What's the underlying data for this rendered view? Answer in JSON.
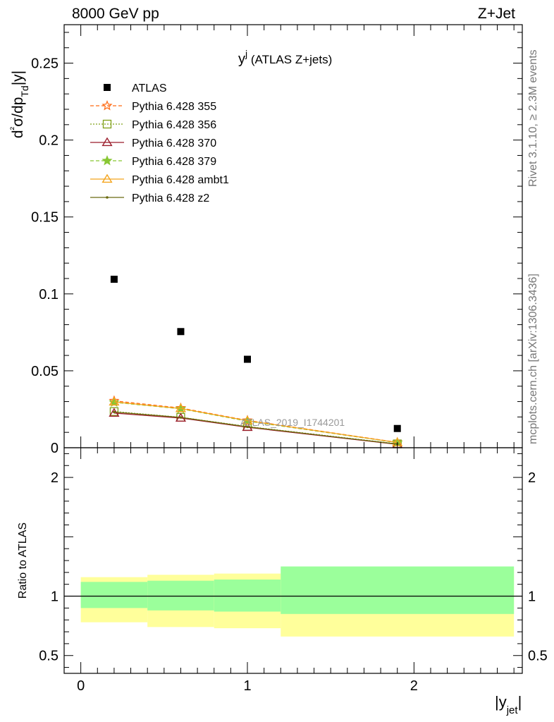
{
  "header": {
    "left": "8000 GeV pp",
    "right": "Z+Jet"
  },
  "side_labels": {
    "rivet": "Rivet 3.1.10, ≥ 2.3M events",
    "mcplots": "mcplots.cern.ch [arXiv:1306.3436]"
  },
  "chart_data": [
    {
      "type": "scatter",
      "title_main": "y",
      "title_sup": "j",
      "title_rest": " (ATLAS Z+jets)",
      "ylabel": "d²σ/dp_Td|y|",
      "watermark": "ATLAS_2019_I1744201",
      "xlim": [
        -0.1,
        2.65
      ],
      "ylim": [
        0,
        0.275
      ],
      "y_ticks": [
        0,
        0.05,
        0.1,
        0.15,
        0.2,
        0.25
      ],
      "y_tick_labels": [
        "0",
        "0.05",
        "0.1",
        "0.15",
        "0.2",
        "0.25"
      ],
      "legend_position": "top-left",
      "series": [
        {
          "name": "ATLAS",
          "color": "#000000",
          "marker": "square",
          "line": "none",
          "x": [
            0.2,
            0.6,
            1.0,
            1.9
          ],
          "y": [
            0.1095,
            0.0755,
            0.0575,
            0.0125
          ]
        },
        {
          "name": "Pythia 6.428 355",
          "color": "#ff6a13",
          "marker": "star-open",
          "line": "dashed",
          "x": [
            0.2,
            0.6,
            1.0,
            1.9
          ],
          "y": [
            0.0305,
            0.0258,
            0.0178,
            0.0035
          ]
        },
        {
          "name": "Pythia 6.428 356",
          "color": "#7fa017",
          "marker": "square-open",
          "line": "dotted",
          "x": [
            0.2,
            0.6,
            1.0,
            1.9
          ],
          "y": [
            0.0235,
            0.0198,
            0.0138,
            0.0025
          ]
        },
        {
          "name": "Pythia 6.428 370",
          "color": "#9b1c2b",
          "marker": "triangle-open",
          "line": "solid",
          "x": [
            0.2,
            0.6,
            1.0,
            1.9
          ],
          "y": [
            0.0225,
            0.0193,
            0.0133,
            0.0022
          ]
        },
        {
          "name": "Pythia 6.428 379",
          "color": "#88c733",
          "marker": "star-filled",
          "line": "dashed",
          "x": [
            0.2,
            0.6,
            1.0,
            1.9
          ],
          "y": [
            0.0295,
            0.0253,
            0.0173,
            0.0033
          ]
        },
        {
          "name": "Pythia 6.428 ambt1",
          "color": "#f4a41c",
          "marker": "triangle-open",
          "line": "solid",
          "x": [
            0.2,
            0.6,
            1.0,
            1.9
          ],
          "y": [
            0.0298,
            0.0255,
            0.0176,
            0.0034
          ]
        },
        {
          "name": "Pythia 6.428 z2",
          "color": "#6b6b10",
          "marker": "dot",
          "line": "solid",
          "x": [
            0.2,
            0.6,
            1.0,
            1.9
          ],
          "y": [
            0.0232,
            0.0197,
            0.0136,
            0.0024
          ]
        }
      ]
    },
    {
      "type": "area",
      "ylabel": "Ratio to ATLAS",
      "xlabel": "|y_jet|",
      "xlim": [
        -0.1,
        2.65
      ],
      "ylim": [
        0.35,
        2.25
      ],
      "x_ticks": [
        0,
        1,
        2
      ],
      "x_tick_labels": [
        "0",
        "1",
        "2"
      ],
      "y_ticks": [
        0.5,
        1,
        2
      ],
      "y_tick_labels": [
        "0.5",
        "1",
        "2"
      ],
      "reference_line": 1,
      "bins": [
        {
          "xlo": 0.0,
          "xhi": 0.4,
          "stat_lo": 0.9,
          "stat_hi": 1.12,
          "tot_lo": 0.78,
          "tot_hi": 1.16
        },
        {
          "xlo": 0.4,
          "xhi": 0.8,
          "stat_lo": 0.88,
          "stat_hi": 1.13,
          "tot_lo": 0.74,
          "tot_hi": 1.18
        },
        {
          "xlo": 0.8,
          "xhi": 1.2,
          "stat_lo": 0.87,
          "stat_hi": 1.14,
          "tot_lo": 0.73,
          "tot_hi": 1.19
        },
        {
          "xlo": 1.2,
          "xhi": 2.6,
          "stat_lo": 0.85,
          "stat_hi": 1.25,
          "tot_lo": 0.66,
          "tot_hi": 1.23
        }
      ],
      "stat_color": "#9bff9b",
      "total_color": "#ffff9b"
    }
  ]
}
